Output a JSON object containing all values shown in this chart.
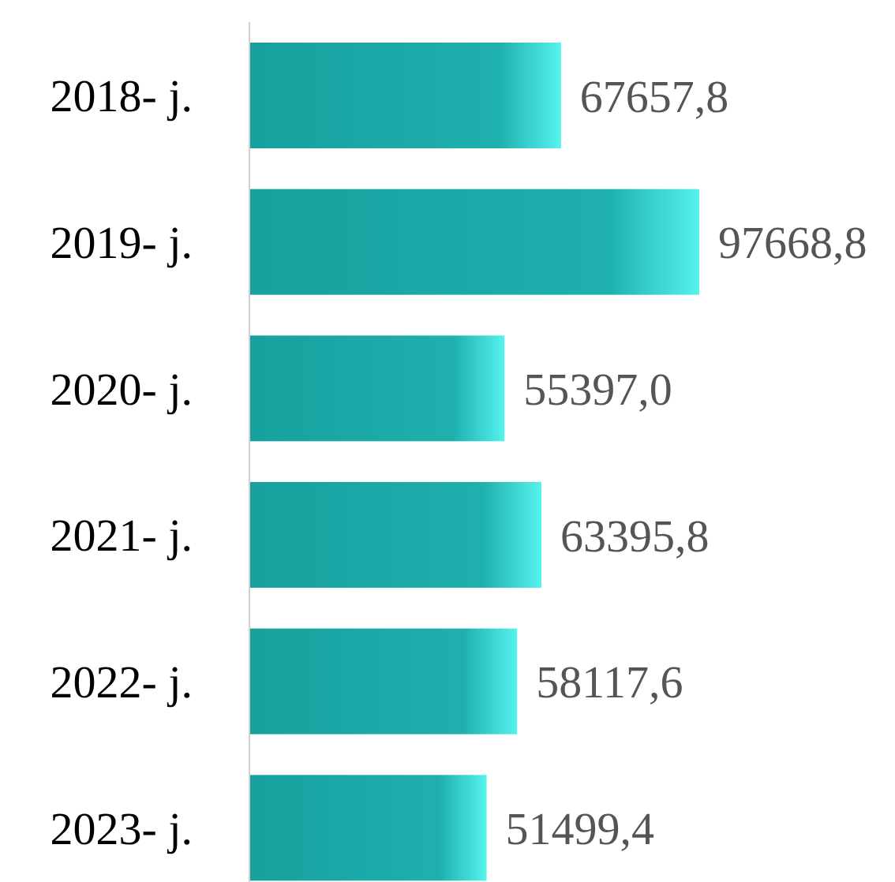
{
  "chart_data": {
    "type": "bar",
    "orientation": "horizontal",
    "categories": [
      "2018- j.",
      "2019- j.",
      "2020- j.",
      "2021- j.",
      "2022- j.",
      "2023- j."
    ],
    "values": [
      67657.8,
      97668.8,
      55397.0,
      63395.8,
      58117.6,
      51499.4
    ],
    "value_labels": [
      "67657,8",
      "97668,8",
      "55397,0",
      "63395,8",
      "58117,6",
      "51499,4"
    ],
    "color": "#1fb0ae"
  }
}
